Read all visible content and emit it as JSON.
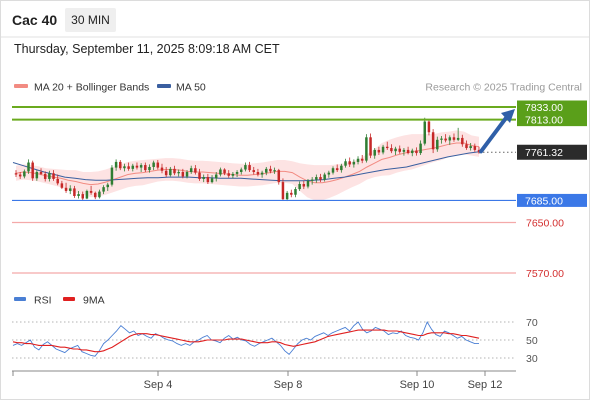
{
  "header": {
    "instrument": "Cac 40",
    "timeframe": "30 MIN",
    "datetime": "Thursday, September 11, 2025 8:09:18 AM CET"
  },
  "legend": {
    "items": [
      {
        "label": "MA 20 + Bollinger Bands",
        "color": "#f28b82"
      },
      {
        "label": "MA 50",
        "color": "#3a5fa0"
      }
    ],
    "credit": "Research © 2025 Trading Central"
  },
  "rsi_legend": {
    "items": [
      {
        "label": "RSI",
        "color": "#4a7fd4"
      },
      {
        "label": "9MA",
        "color": "#e02020"
      }
    ]
  },
  "colors": {
    "up": "#2e7d32",
    "down": "#c62828",
    "resistance": "#6aaa1e",
    "support": "#f4a9a9",
    "pivot": "#3b78e7",
    "arrow": "#2f5fa8",
    "band_fill": "#fde3e3"
  },
  "chart_data": [
    {
      "type": "candlestick",
      "title": "Cac 40",
      "ylim": [
        7540,
        7860
      ],
      "x_tick_labels": [
        "Sep 4",
        "Sep 8",
        "Sep 10",
        "Sep 12"
      ],
      "candles": [
        [
          7728,
          7733,
          7722,
          7726
        ],
        [
          7726,
          7730,
          7719,
          7723
        ],
        [
          7723,
          7734,
          7720,
          7731
        ],
        [
          7731,
          7750,
          7727,
          7745
        ],
        [
          7745,
          7748,
          7716,
          7720
        ],
        [
          7720,
          7733,
          7716,
          7730
        ],
        [
          7730,
          7736,
          7725,
          7727
        ],
        [
          7727,
          7731,
          7715,
          7719
        ],
        [
          7719,
          7732,
          7715,
          7728
        ],
        [
          7728,
          7733,
          7716,
          7719
        ],
        [
          7719,
          7726,
          7709,
          7712
        ],
        [
          7712,
          7716,
          7703,
          7705
        ],
        [
          7705,
          7713,
          7697,
          7700
        ],
        [
          7700,
          7709,
          7695,
          7704
        ],
        [
          7704,
          7708,
          7689,
          7692
        ],
        [
          7692,
          7700,
          7688,
          7695
        ],
        [
          7695,
          7699,
          7685,
          7688
        ],
        [
          7688,
          7702,
          7687,
          7700
        ],
        [
          7700,
          7708,
          7694,
          7697
        ],
        [
          7697,
          7699,
          7687,
          7690
        ],
        [
          7690,
          7702,
          7688,
          7699
        ],
        [
          7699,
          7709,
          7695,
          7706
        ],
        [
          7706,
          7713,
          7700,
          7710
        ],
        [
          7710,
          7741,
          7707,
          7737
        ],
        [
          7737,
          7750,
          7732,
          7746
        ],
        [
          7746,
          7749,
          7733,
          7736
        ],
        [
          7736,
          7743,
          7731,
          7739
        ],
        [
          7739,
          7745,
          7732,
          7735
        ],
        [
          7735,
          7743,
          7731,
          7740
        ],
        [
          7740,
          7745,
          7734,
          7737
        ],
        [
          7737,
          7744,
          7730,
          7741
        ],
        [
          7741,
          7745,
          7730,
          7733
        ],
        [
          7733,
          7742,
          7729,
          7738
        ],
        [
          7738,
          7748,
          7733,
          7745
        ],
        [
          7745,
          7749,
          7734,
          7737
        ],
        [
          7737,
          7743,
          7728,
          7732
        ],
        [
          7732,
          7738,
          7722,
          7725
        ],
        [
          7725,
          7738,
          7723,
          7735
        ],
        [
          7735,
          7740,
          7725,
          7728
        ],
        [
          7728,
          7734,
          7723,
          7730
        ],
        [
          7730,
          7735,
          7720,
          7723
        ],
        [
          7723,
          7733,
          7720,
          7730
        ],
        [
          7730,
          7740,
          7727,
          7736
        ],
        [
          7736,
          7741,
          7726,
          7729
        ],
        [
          7729,
          7735,
          7716,
          7719
        ],
        [
          7719,
          7726,
          7714,
          7722
        ],
        [
          7722,
          7727,
          7711,
          7714
        ],
        [
          7714,
          7725,
          7712,
          7720
        ],
        [
          7720,
          7730,
          7715,
          7726
        ],
        [
          7726,
          7737,
          7723,
          7734
        ],
        [
          7734,
          7736,
          7725,
          7728
        ],
        [
          7728,
          7733,
          7721,
          7724
        ],
        [
          7724,
          7730,
          7720,
          7727
        ],
        [
          7727,
          7733,
          7722,
          7730
        ],
        [
          7730,
          7737,
          7726,
          7734
        ],
        [
          7734,
          7745,
          7731,
          7741
        ],
        [
          7741,
          7746,
          7730,
          7733
        ],
        [
          7733,
          7738,
          7726,
          7730
        ],
        [
          7730,
          7735,
          7723,
          7726
        ],
        [
          7726,
          7732,
          7721,
          7729
        ],
        [
          7729,
          7738,
          7725,
          7735
        ],
        [
          7735,
          7740,
          7728,
          7731
        ],
        [
          7731,
          7737,
          7727,
          7733
        ],
        [
          7733,
          7735,
          7710,
          7714
        ],
        [
          7714,
          7720,
          7684,
          7687
        ],
        [
          7687,
          7700,
          7684,
          7697
        ],
        [
          7697,
          7702,
          7690,
          7694
        ],
        [
          7694,
          7706,
          7690,
          7703
        ],
        [
          7703,
          7715,
          7700,
          7711
        ],
        [
          7711,
          7716,
          7703,
          7707
        ],
        [
          7707,
          7719,
          7704,
          7716
        ],
        [
          7716,
          7722,
          7710,
          7718
        ],
        [
          7718,
          7726,
          7713,
          7722
        ],
        [
          7722,
          7727,
          7714,
          7718
        ],
        [
          7718,
          7729,
          7715,
          7726
        ],
        [
          7726,
          7732,
          7721,
          7729
        ],
        [
          7729,
          7739,
          7726,
          7736
        ],
        [
          7736,
          7742,
          7730,
          7733
        ],
        [
          7733,
          7743,
          7729,
          7740
        ],
        [
          7740,
          7751,
          7737,
          7747
        ],
        [
          7747,
          7753,
          7738,
          7742
        ],
        [
          7742,
          7750,
          7737,
          7746
        ],
        [
          7746,
          7755,
          7742,
          7751
        ],
        [
          7751,
          7757,
          7744,
          7748
        ],
        [
          7748,
          7790,
          7745,
          7785
        ],
        [
          7785,
          7791,
          7752,
          7756
        ],
        [
          7756,
          7768,
          7751,
          7765
        ],
        [
          7765,
          7770,
          7757,
          7761
        ],
        [
          7761,
          7773,
          7758,
          7770
        ],
        [
          7770,
          7778,
          7765,
          7768
        ],
        [
          7768,
          7774,
          7760,
          7763
        ],
        [
          7763,
          7770,
          7757,
          7767
        ],
        [
          7767,
          7772,
          7759,
          7762
        ],
        [
          7762,
          7768,
          7756,
          7765
        ],
        [
          7765,
          7770,
          7758,
          7760
        ],
        [
          7760,
          7767,
          7755,
          7764
        ],
        [
          7764,
          7769,
          7756,
          7760
        ],
        [
          7760,
          7780,
          7757,
          7775
        ],
        [
          7775,
          7816,
          7772,
          7810
        ],
        [
          7810,
          7814,
          7788,
          7793
        ],
        [
          7793,
          7798,
          7760,
          7766
        ],
        [
          7766,
          7786,
          7762,
          7781
        ],
        [
          7781,
          7787,
          7775,
          7783
        ],
        [
          7783,
          7790,
          7777,
          7780
        ],
        [
          7780,
          7788,
          7773,
          7785
        ],
        [
          7785,
          7791,
          7778,
          7781
        ],
        [
          7781,
          7800,
          7779,
          7784
        ],
        [
          7784,
          7789,
          7770,
          7774
        ],
        [
          7774,
          7780,
          7765,
          7768
        ],
        [
          7768,
          7776,
          7764,
          7771
        ],
        [
          7771,
          7775,
          7762,
          7765
        ],
        [
          7765,
          7770,
          7759,
          7761
        ]
      ],
      "bollinger": {
        "ma20": [
          7728,
          7730,
          7729,
          7727,
          7724,
          7722,
          7720,
          7717,
          7715,
          7712,
          7710,
          7711,
          7714,
          7718,
          7722,
          7726,
          7728,
          7729,
          7731,
          7733,
          7734,
          7734,
          7733,
          7731,
          7730,
          7730,
          7729,
          7728,
          7727,
          7726,
          7725,
          7725,
          7726,
          7727,
          7729,
          7731,
          7731,
          7729,
          7722,
          7716,
          7713,
          7713,
          7715,
          7718,
          7722,
          7726,
          7731,
          7738,
          7744,
          7750,
          7753,
          7757,
          7760,
          7762,
          7764,
          7766,
          7768,
          7771,
          7774,
          7776,
          7776,
          7772,
          7770
        ],
        "width": [
          12,
          12,
          12,
          12,
          12,
          13,
          14,
          16,
          18,
          18,
          20,
          20,
          20,
          20,
          20,
          20,
          20,
          20,
          19,
          18,
          18,
          18,
          18,
          18,
          18,
          18,
          18,
          18,
          18,
          18,
          18,
          18,
          18,
          18,
          18,
          18,
          18,
          18,
          22,
          26,
          28,
          28,
          26,
          24,
          22,
          20,
          20,
          20,
          22,
          26,
          28,
          28,
          28,
          28,
          26,
          24,
          22,
          22,
          20,
          20,
          18,
          16,
          16
        ]
      },
      "ma50": [
        7745,
        7740,
        7735,
        7730,
        7726,
        7722,
        7720,
        7718,
        7717,
        7717,
        7718,
        7719,
        7720,
        7721,
        7721,
        7722,
        7722,
        7722,
        7721,
        7721,
        7720,
        7720,
        7720,
        7719,
        7718,
        7717,
        7716,
        7716,
        7716,
        7717,
        7718,
        7720,
        7722,
        7725,
        7728,
        7731,
        7734,
        7736,
        7738,
        7742,
        7746,
        7750,
        7754,
        7757,
        7760,
        7762
      ],
      "levels": [
        {
          "label": "7833.00",
          "value": 7833,
          "kind": "resistance"
        },
        {
          "label": "7813.00",
          "value": 7813,
          "kind": "resistance"
        },
        {
          "label": "7761.32",
          "value": 7761.32,
          "kind": "current"
        },
        {
          "label": "7685.00",
          "value": 7685,
          "kind": "pivot"
        },
        {
          "label": "7650.00",
          "value": 7650,
          "kind": "support"
        },
        {
          "label": "7570.00",
          "value": 7570,
          "kind": "support"
        }
      ]
    },
    {
      "type": "line",
      "title": "",
      "ylim": [
        20,
        80
      ],
      "y_ticks": [
        70,
        50,
        30
      ],
      "series": [
        {
          "name": "RSI",
          "values": [
            44,
            46,
            44,
            47,
            50,
            42,
            39,
            45,
            48,
            44,
            40,
            38,
            36,
            40,
            42,
            44,
            37,
            35,
            33,
            32,
            38,
            46,
            50,
            55,
            60,
            66,
            62,
            58,
            60,
            55,
            57,
            54,
            52,
            57,
            55,
            52,
            50,
            49,
            46,
            44,
            46,
            44,
            48,
            50,
            53,
            55,
            50,
            49,
            47,
            52,
            55,
            51,
            53,
            50,
            49,
            45,
            43,
            46,
            48,
            50,
            52,
            48,
            44,
            38,
            34,
            40,
            46,
            50,
            52,
            50,
            54,
            56,
            58,
            55,
            58,
            60,
            62,
            64,
            60,
            66,
            70,
            62,
            58,
            60,
            64,
            62,
            60,
            56,
            58,
            57,
            60,
            55,
            53,
            52,
            50,
            58,
            70,
            62,
            56,
            54,
            60,
            58,
            55,
            52,
            54,
            50,
            48,
            46,
            46
          ]
        },
        {
          "name": "9MA",
          "values": [
            48,
            47,
            47,
            46,
            46,
            45,
            44,
            44,
            44,
            44,
            43,
            42,
            42,
            41,
            40,
            40,
            39,
            39,
            38,
            37,
            37,
            38,
            40,
            42,
            45,
            48,
            51,
            54,
            56,
            57,
            57,
            57,
            56,
            56,
            55,
            54,
            53,
            52,
            51,
            50,
            49,
            48,
            48,
            48,
            49,
            50,
            50,
            50,
            50,
            50,
            51,
            51,
            51,
            51,
            50,
            49,
            48,
            47,
            47,
            47,
            48,
            48,
            47,
            45,
            44,
            43,
            44,
            45,
            46,
            47,
            48,
            50,
            52,
            54,
            55,
            56,
            57,
            58,
            59,
            60,
            61,
            61,
            61,
            61,
            61,
            61,
            61,
            60,
            60,
            60,
            59,
            58,
            57,
            56,
            55,
            55,
            57,
            58,
            58,
            58,
            58,
            57,
            57,
            56,
            55,
            55,
            54,
            53,
            52
          ]
        }
      ]
    }
  ]
}
